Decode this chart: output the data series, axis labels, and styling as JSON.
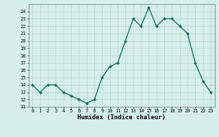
{
  "x": [
    0,
    1,
    2,
    3,
    4,
    5,
    6,
    7,
    8,
    9,
    10,
    11,
    12,
    13,
    14,
    15,
    16,
    17,
    18,
    19,
    20,
    21,
    22,
    23
  ],
  "y": [
    14,
    13,
    14,
    14,
    13,
    12.5,
    12,
    11.5,
    12,
    15,
    16.5,
    17,
    20,
    23,
    22,
    24.5,
    22,
    23,
    23,
    22,
    21,
    17,
    14.5,
    13
  ],
  "xlabel": "Humidex (Indice chaleur)",
  "line_color": "#1a6b5a",
  "marker": "D",
  "marker_size": 2.0,
  "bg_color": "#d4eee8",
  "grid_color": "#b8d8d0",
  "ylim": [
    11,
    25
  ],
  "yticks": [
    11,
    12,
    13,
    14,
    15,
    16,
    17,
    18,
    19,
    20,
    21,
    22,
    23,
    24
  ],
  "xlim": [
    -0.5,
    23.5
  ],
  "xticks": [
    0,
    1,
    2,
    3,
    4,
    5,
    6,
    7,
    8,
    9,
    10,
    11,
    12,
    13,
    14,
    15,
    16,
    17,
    18,
    19,
    20,
    21,
    22,
    23
  ],
  "tick_fontsize": 5.0,
  "xlabel_fontsize": 6.5,
  "linewidth": 1.0
}
